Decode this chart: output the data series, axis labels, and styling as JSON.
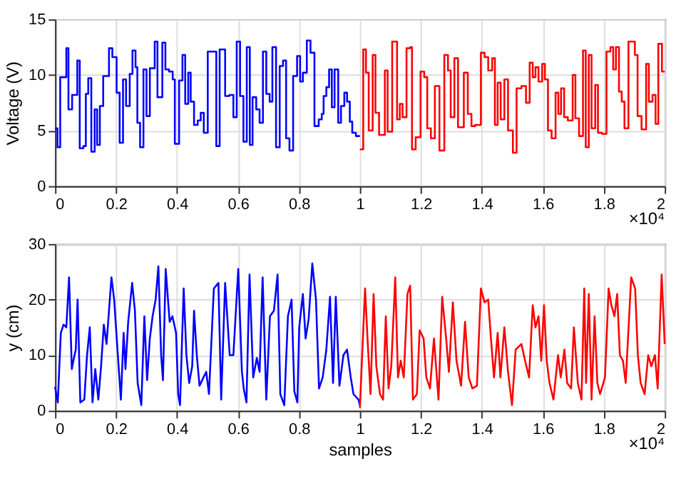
{
  "chart_data": [
    {
      "type": "step",
      "ylabel": "Voltage (V)",
      "xlim": [
        0,
        2
      ],
      "ylim": [
        0,
        15
      ],
      "xticks": [
        0,
        0.2,
        0.4,
        0.6,
        0.8,
        1,
        1.2,
        1.4,
        1.6,
        1.8,
        2
      ],
      "yticks": [
        0,
        5,
        10,
        15
      ],
      "grid": true,
      "annotations": [
        "×10⁴"
      ],
      "series": [
        {
          "color": "#0000ff",
          "x": [
            0,
            0.008,
            0.017,
            0.037,
            0.044,
            0.056,
            0.073,
            0.081,
            0.093,
            0.101,
            0.109,
            0.119,
            0.13,
            0.138,
            0.147,
            0.158,
            0.177,
            0.188,
            0.202,
            0.212,
            0.223,
            0.233,
            0.245,
            0.254,
            0.264,
            0.27,
            0.279,
            0.29,
            0.3,
            0.311,
            0.327,
            0.336,
            0.352,
            0.362,
            0.374,
            0.386,
            0.393,
            0.407,
            0.418,
            0.427,
            0.437,
            0.445,
            0.456,
            0.468,
            0.478,
            0.488,
            0.501,
            0.519,
            0.529,
            0.54,
            0.558,
            0.572,
            0.585,
            0.596,
            0.607,
            0.618,
            0.629,
            0.639,
            0.648,
            0.66,
            0.671,
            0.682,
            0.693,
            0.704,
            0.713,
            0.725,
            0.737,
            0.748,
            0.758,
            0.769,
            0.781,
            0.794,
            0.804,
            0.813,
            0.826,
            0.838,
            0.851,
            0.865,
            0.875,
            0.881,
            0.89,
            0.899,
            0.908,
            0.917,
            0.929,
            0.938,
            0.949,
            0.958,
            0.967,
            0.975,
            0.987,
            1
          ],
          "values": [
            5.2,
            3.5,
            9.8,
            12.4,
            6.9,
            8.2,
            11.3,
            3.4,
            3.6,
            8.3,
            9.7,
            3.1,
            6.9,
            3.7,
            7.2,
            9.9,
            12.4,
            11.6,
            8.4,
            3.9,
            9.6,
            7.2,
            10.1,
            12.2,
            10.7,
            5.7,
            3.5,
            10.5,
            6.3,
            10.6,
            13.0,
            8.0,
            12.9,
            10.5,
            10.3,
            9.6,
            3.8,
            9.5,
            11.8,
            7.4,
            10.2,
            7.6,
            5.5,
            5.9,
            6.6,
            4.8,
            12.1,
            12.1,
            3.6,
            12.3,
            8.1,
            8.2,
            6.2,
            13.0,
            8.1,
            4.0,
            12.5,
            3.7,
            8.0,
            6.9,
            5.7,
            12.1,
            8.3,
            7.6,
            12.5,
            3.5,
            10.8,
            11.3,
            4.3,
            3.2,
            9.9,
            11.7,
            9.4,
            10.2,
            13.1,
            12.0,
            5.4,
            6.0,
            6.5,
            8.1,
            8.9,
            10.5,
            7.1,
            10.5,
            5.7,
            7.2,
            8.4,
            7.6,
            5.8,
            4.8,
            4.5,
            4.5
          ]
        },
        {
          "color": "#ff0000",
          "x": [
            1,
            1.011,
            1.02,
            1.029,
            1.042,
            1.051,
            1.063,
            1.082,
            1.091,
            1.106,
            1.122,
            1.131,
            1.14,
            1.153,
            1.165,
            1.171,
            1.183,
            1.199,
            1.211,
            1.221,
            1.233,
            1.246,
            1.261,
            1.277,
            1.289,
            1.298,
            1.31,
            1.322,
            1.341,
            1.354,
            1.366,
            1.378,
            1.397,
            1.409,
            1.421,
            1.434,
            1.443,
            1.452,
            1.462,
            1.474,
            1.486,
            1.502,
            1.514,
            1.53,
            1.545,
            1.557,
            1.567,
            1.576,
            1.586,
            1.598,
            1.607,
            1.617,
            1.629,
            1.642,
            1.651,
            1.66,
            1.67,
            1.682,
            1.698,
            1.707,
            1.719,
            1.732,
            1.741,
            1.751,
            1.76,
            1.772,
            1.781,
            1.794,
            1.809,
            1.822,
            1.831,
            1.84,
            1.85,
            1.859,
            1.868,
            1.881,
            1.902,
            1.911,
            1.924,
            1.939,
            1.948,
            1.96,
            1.97,
            1.979,
            1.991,
            2
          ],
          "values": [
            3.3,
            12.3,
            10.2,
            5.0,
            11.8,
            6.6,
            4.6,
            10.4,
            4.9,
            13.0,
            6.0,
            7.4,
            6.2,
            12.4,
            12.5,
            3.3,
            4.4,
            10.3,
            9.8,
            5.2,
            4.3,
            9.0,
            3.2,
            11.8,
            10.4,
            6.2,
            11.5,
            5.3,
            10.2,
            6.5,
            5.4,
            5.5,
            12.0,
            11.6,
            10.4,
            11.5,
            5.5,
            9.3,
            6.0,
            9.6,
            5.0,
            3.0,
            8.8,
            9.0,
            7.5,
            11.1,
            9.8,
            10.7,
            9.4,
            11.0,
            9.6,
            5.0,
            4.3,
            8.4,
            6.5,
            8.8,
            6.2,
            5.9,
            10.0,
            6.1,
            4.5,
            12.2,
            3.5,
            11.8,
            5.2,
            9.1,
            4.8,
            4.7,
            12.1,
            12.5,
            10.5,
            12.5,
            8.5,
            7.6,
            5.2,
            13.0,
            11.8,
            6.3,
            5.1,
            11.0,
            7.6,
            8.2,
            5.6,
            12.8,
            10.3,
            10.3
          ]
        }
      ]
    },
    {
      "type": "line",
      "xlabel": "samples",
      "ylabel": "y (cm)",
      "xlim": [
        0,
        2
      ],
      "ylim": [
        0,
        30
      ],
      "xticks": [
        0,
        0.2,
        0.4,
        0.6,
        0.8,
        1,
        1.2,
        1.4,
        1.6,
        1.8,
        2
      ],
      "yticks": [
        0,
        10,
        20,
        30
      ],
      "grid": true,
      "annotations": [
        "×10⁴"
      ],
      "series": [
        {
          "color": "#0000ff",
          "x": [
            0,
            0.009,
            0.019,
            0.028,
            0.037,
            0.046,
            0.055,
            0.062,
            0.068,
            0.074,
            0.083,
            0.096,
            0.105,
            0.114,
            0.123,
            0.132,
            0.142,
            0.151,
            0.16,
            0.169,
            0.185,
            0.194,
            0.206,
            0.216,
            0.225,
            0.231,
            0.24,
            0.253,
            0.262,
            0.271,
            0.283,
            0.293,
            0.302,
            0.311,
            0.32,
            0.33,
            0.339,
            0.348,
            0.354,
            0.363,
            0.376,
            0.385,
            0.397,
            0.404,
            0.41,
            0.422,
            0.431,
            0.44,
            0.45,
            0.456,
            0.465,
            0.474,
            0.487,
            0.496,
            0.505,
            0.521,
            0.536,
            0.545,
            0.558,
            0.573,
            0.585,
            0.601,
            0.613,
            0.619,
            0.628,
            0.638,
            0.65,
            0.662,
            0.671,
            0.681,
            0.693,
            0.705,
            0.718,
            0.73,
            0.739,
            0.752,
            0.764,
            0.776,
            0.785,
            0.795,
            0.801,
            0.813,
            0.822,
            0.832,
            0.844,
            0.856,
            0.866,
            0.878,
            0.89,
            0.902,
            0.912,
            0.921,
            0.933,
            0.946,
            0.958,
            0.97,
            0.979,
            0.9955,
            1
          ],
          "values": [
            4.3,
            1.5,
            14,
            15.5,
            15,
            24,
            7.5,
            9.5,
            11,
            20,
            1.5,
            2,
            10,
            15,
            1.5,
            7.5,
            2,
            8,
            15.5,
            12,
            24,
            20,
            10,
            2,
            14,
            7.5,
            16,
            23,
            18,
            5,
            1,
            17,
            5.5,
            13,
            17,
            20,
            26,
            10,
            5.5,
            25.5,
            16,
            17,
            14,
            3,
            1,
            22,
            10,
            5,
            8,
            18,
            10,
            4.5,
            6,
            7,
            3,
            22,
            23,
            2,
            23,
            10,
            10,
            25.5,
            7,
            4,
            1.5,
            24.5,
            6,
            9.5,
            7,
            24,
            2,
            17,
            18,
            24.5,
            3,
            1,
            17,
            20,
            3.5,
            1.5,
            15,
            21,
            13,
            16.5,
            26.5,
            20,
            4,
            6,
            11,
            20.5,
            5,
            20.5,
            4.5,
            10,
            11,
            6,
            3,
            2,
            1
          ]
        },
        {
          "color": "#ff0000",
          "x": [
            1,
            1.017,
            1.026,
            1.035,
            1.045,
            1.054,
            1.066,
            1.076,
            1.085,
            1.094,
            1.103,
            1.116,
            1.125,
            1.134,
            1.144,
            1.156,
            1.165,
            1.174,
            1.187,
            1.196,
            1.209,
            1.218,
            1.23,
            1.243,
            1.258,
            1.27,
            1.283,
            1.292,
            1.305,
            1.317,
            1.332,
            1.345,
            1.357,
            1.369,
            1.384,
            1.397,
            1.409,
            1.421,
            1.43,
            1.44,
            1.452,
            1.461,
            1.474,
            1.486,
            1.499,
            1.511,
            1.53,
            1.542,
            1.555,
            1.567,
            1.576,
            1.586,
            1.595,
            1.604,
            1.613,
            1.622,
            1.635,
            1.65,
            1.659,
            1.671,
            1.68,
            1.693,
            1.702,
            1.715,
            1.727,
            1.736,
            1.742,
            1.751,
            1.76,
            1.77,
            1.779,
            1.788,
            1.804,
            1.816,
            1.825,
            1.835,
            1.844,
            1.853,
            1.863,
            1.872,
            1.89,
            1.903,
            1.912,
            1.921,
            1.934,
            1.946,
            1.956,
            1.968,
            1.977,
            1.99,
            2
          ],
          "values": [
            0.5,
            22,
            12,
            3,
            21,
            8,
            3,
            2,
            17,
            4,
            8,
            24,
            6,
            9,
            6,
            21,
            22.5,
            2,
            3,
            14.5,
            13,
            6,
            4,
            13,
            2,
            20.5,
            13,
            7,
            19.5,
            9,
            4.5,
            16,
            6,
            4,
            4.5,
            22,
            19.5,
            20,
            13,
            6,
            14,
            6,
            15,
            7,
            1,
            11,
            12,
            9,
            6,
            19,
            15,
            17,
            9,
            19,
            9,
            5,
            2,
            10,
            6,
            11,
            5,
            4,
            15,
            5,
            2,
            22,
            5,
            21,
            2,
            17,
            5,
            3,
            6,
            22,
            19,
            17,
            21,
            10,
            9,
            5,
            24,
            22,
            10,
            5,
            3,
            10,
            8,
            10,
            4,
            24.5,
            12
          ]
        }
      ]
    }
  ]
}
